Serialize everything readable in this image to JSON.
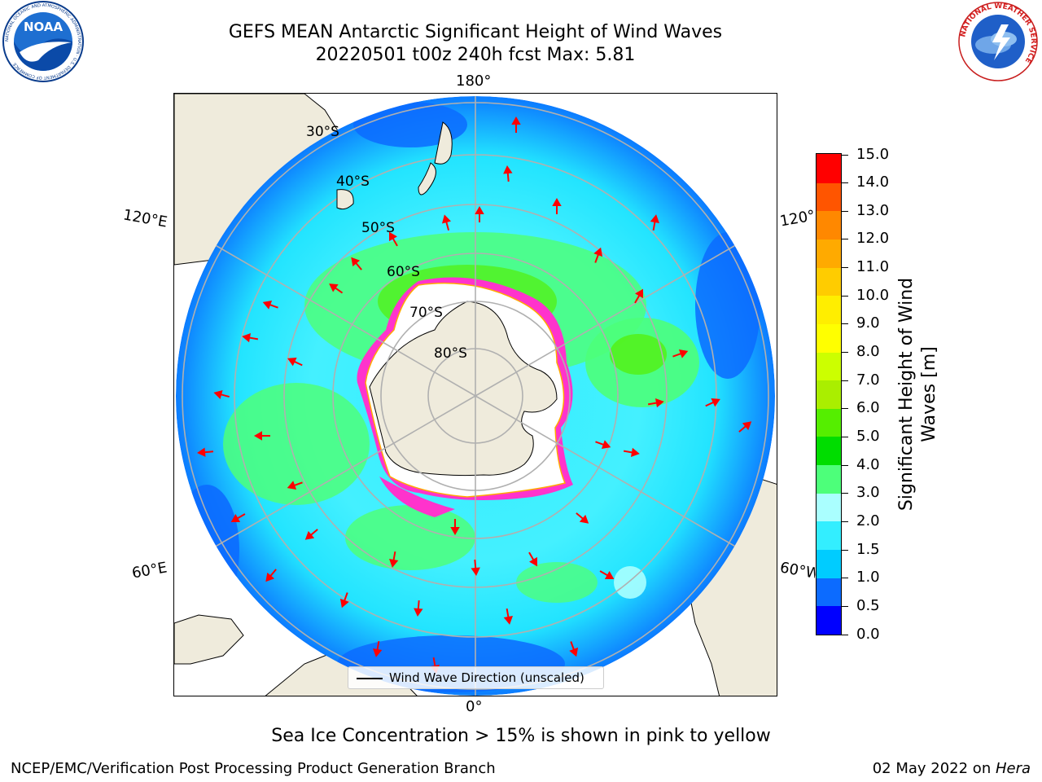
{
  "header": {
    "line1": "GEFS MEAN Antarctic Significant Height of Wind Waves",
    "line2": "20220501 t00z 240h fcst   Max: 5.81"
  },
  "logos": {
    "left": "noaa-logo",
    "left_text": "NOAA",
    "left_ring_text": "NATIONAL OCEANIC AND ATMOSPHERIC ADMINISTRATION · U.S. DEPARTMENT OF COMMERCE",
    "right": "nws-logo",
    "right_ring_text": "NATIONAL WEATHER SERVICE"
  },
  "map": {
    "projection": "south-polar-stereographic",
    "lon_labels": {
      "top": "180°",
      "bottom": "0°",
      "left_upper": "120°E",
      "left_lower": "60°E",
      "right_upper": "120°W",
      "right_lower": "60°W"
    },
    "lat_labels": [
      "30°S",
      "40°S",
      "50°S",
      "60°S",
      "70°S",
      "80°S"
    ],
    "legend_label": "Wind Wave Direction (unscaled)",
    "colors": {
      "land": "#efebdc",
      "ice_edge": "#ff33cc",
      "ice_inner": "#ffffff",
      "arrow": "#ff0000"
    }
  },
  "colorbar": {
    "title_line1": "Significant Height of Wind",
    "title_line2": "Waves [m]",
    "ticks": [
      "0.0",
      "0.5",
      "1.0",
      "1.5",
      "2.0",
      "3.0",
      "4.0",
      "5.0",
      "6.0",
      "7.0",
      "8.0",
      "9.0",
      "10.0",
      "11.0",
      "12.0",
      "13.0",
      "14.0",
      "15.0"
    ],
    "colors": [
      "#0000ff",
      "#0c6bff",
      "#00ccff",
      "#33eeff",
      "#aaffff",
      "#4dff7a",
      "#00dd00",
      "#55ee00",
      "#aaee00",
      "#ccff00",
      "#ffff00",
      "#ffee00",
      "#ffcc00",
      "#ffaa00",
      "#ff8800",
      "#ff5500",
      "#ff0000"
    ]
  },
  "note": "Sea Ice Concentration > 15% is shown in pink to yellow",
  "footer": {
    "left": "NCEP/EMC/Verification Post Processing Product Generation Branch",
    "right_prefix": "02 May 2022 on ",
    "right_italic": "Hera"
  }
}
